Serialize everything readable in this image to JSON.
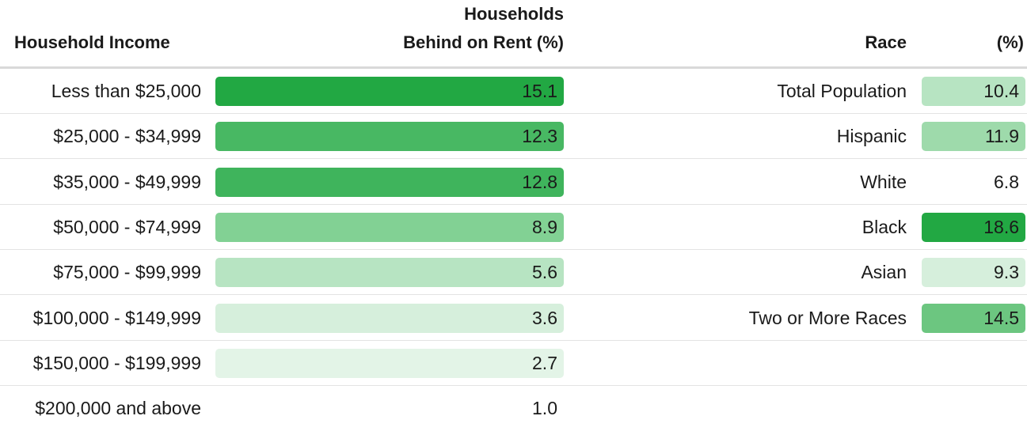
{
  "headers": {
    "income": "Household Income",
    "rent_line1": "Households",
    "rent_line2": "Behind on Rent (%)",
    "race": "Race",
    "race_pct": "(%)"
  },
  "income_rows": [
    {
      "label": "Less than $25,000",
      "value": "15.1",
      "color": "#22a843"
    },
    {
      "label": "$25,000 - $34,999",
      "value": "12.3",
      "color": "#48b863"
    },
    {
      "label": "$35,000 - $49,999",
      "value": "12.8",
      "color": "#3fb45c"
    },
    {
      "label": "$50,000 - $74,999",
      "value": "8.9",
      "color": "#82d194"
    },
    {
      "label": "$75,000 - $99,999",
      "value": "5.6",
      "color": "#b7e4c2"
    },
    {
      "label": "$100,000 - $149,999",
      "value": "3.6",
      "color": "#d6efdc"
    },
    {
      "label": "$150,000 - $199,999",
      "value": "2.7",
      "color": "#e3f4e7"
    },
    {
      "label": "$200,000 and above",
      "value": "1.0",
      "color": "#ffffff"
    }
  ],
  "race_rows": [
    {
      "label": "Total Population",
      "value": "10.4",
      "color": "#b7e4c2"
    },
    {
      "label": "Hispanic",
      "value": "11.9",
      "color": "#9edaab"
    },
    {
      "label": "White",
      "value": "6.8",
      "color": "#ffffff"
    },
    {
      "label": "Black",
      "value": "18.6",
      "color": "#22a843"
    },
    {
      "label": "Asian",
      "value": "9.3",
      "color": "#d6efdc"
    },
    {
      "label": "Two or More Races",
      "value": "14.5",
      "color": "#6cc680"
    }
  ],
  "chart_data": {
    "type": "table",
    "columns": [
      "Household Income",
      "Households Behind on Rent (%)",
      "Race",
      "(%)"
    ],
    "income": {
      "categories": [
        "Less than $25,000",
        "$25,000 - $34,999",
        "$35,000 - $49,999",
        "$50,000 - $74,999",
        "$75,000 - $99,999",
        "$100,000 - $149,999",
        "$150,000 - $199,999",
        "$200,000 and above"
      ],
      "values": [
        15.1,
        12.3,
        12.8,
        8.9,
        5.6,
        3.6,
        2.7,
        1.0
      ]
    },
    "race": {
      "categories": [
        "Total Population",
        "Hispanic",
        "White",
        "Black",
        "Asian",
        "Two or More Races"
      ],
      "values": [
        10.4,
        11.9,
        6.8,
        18.6,
        9.3,
        14.5
      ]
    },
    "encoding": "cell background green intensity scales with value"
  }
}
